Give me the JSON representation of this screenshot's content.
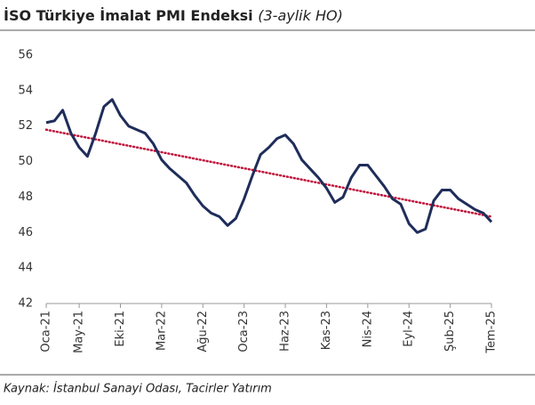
{
  "chart_data": {
    "type": "line",
    "title": "İSO Türkiye İmalat PMI Endeksi",
    "subtitle": "(3-aylik HO)",
    "source": "Kaynak: İstanbul Sanayi Odası, Tacirler Yatırım",
    "categories": [
      "Oca-21",
      null,
      null,
      null,
      "May-21",
      null,
      null,
      null,
      null,
      "Eki-21",
      null,
      null,
      null,
      null,
      "Mar-22",
      null,
      null,
      null,
      null,
      "Ağu-22",
      null,
      null,
      null,
      null,
      "Oca-23",
      null,
      null,
      null,
      null,
      "Haz-23",
      null,
      null,
      null,
      null,
      "Kas-23",
      null,
      null,
      null,
      null,
      "Nis-24",
      null,
      null,
      null,
      null,
      "Eyl-24",
      null,
      null,
      null,
      null,
      "Şub-25",
      null,
      null,
      null,
      null,
      "Tem-25"
    ],
    "series": [
      {
        "color": "#1f2d5a",
        "values": [
          52.2,
          52.3,
          52.9,
          51.6,
          50.8,
          50.3,
          51.6,
          53.1,
          53.5,
          52.6,
          52.0,
          51.8,
          51.6,
          51.0,
          50.1,
          49.6,
          49.2,
          48.8,
          48.1,
          47.5,
          47.1,
          46.9,
          46.4,
          46.8,
          47.9,
          49.2,
          50.4,
          50.8,
          51.3,
          51.5,
          51.0,
          50.1,
          49.6,
          49.1,
          48.5,
          47.7,
          48.0,
          49.1,
          49.8,
          49.8,
          49.2,
          48.6,
          47.9,
          47.6,
          46.5,
          46.0,
          46.2,
          47.8,
          48.4,
          48.4,
          47.9,
          47.6,
          47.3,
          47.1,
          46.6
        ]
      }
    ],
    "trend": {
      "color": "#c0143c",
      "start": 51.8,
      "end": 46.9
    },
    "ylim": [
      42,
      56
    ],
    "yticks": [
      42,
      44,
      46,
      48,
      50,
      52,
      54,
      56
    ]
  }
}
